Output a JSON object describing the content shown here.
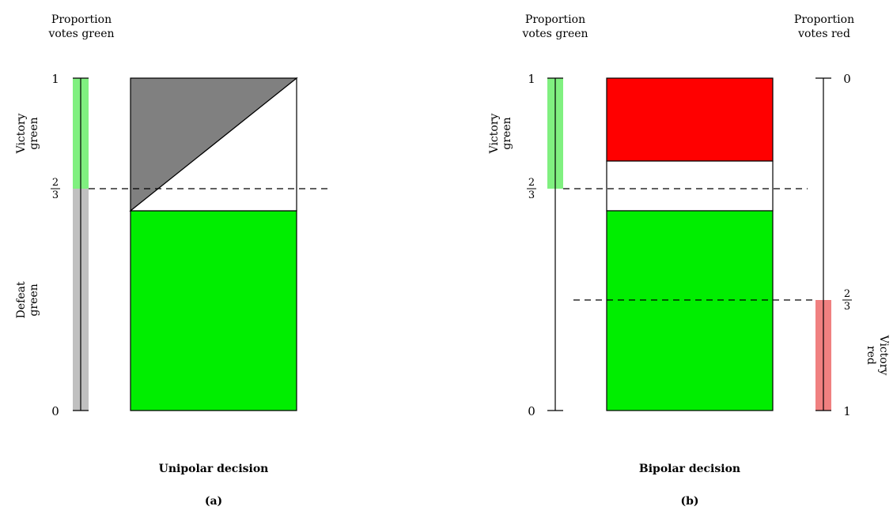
{
  "colors": {
    "green": "#00ee00",
    "light_green": "#80f080",
    "gray_fill": "#808080",
    "light_gray": "#c0c0c0",
    "red": "#ff0000",
    "light_red": "#f08080",
    "white": "#ffffff",
    "stroke": "#000000"
  },
  "panel_a": {
    "axis_title_line1": "Proportion",
    "axis_title_line2": "votes green",
    "tick_top": "1",
    "tick_bottom": "0",
    "threshold_num": "2",
    "threshold_den": "3",
    "victory_line1": "Victory",
    "victory_line2": "green",
    "defeat_line1": "Defeat",
    "defeat_line2": "green",
    "title": "Unipolar decision",
    "caption": "(a)"
  },
  "panel_b": {
    "left_axis_title_line1": "Proportion",
    "left_axis_title_line2": "votes green",
    "right_axis_title_line1": "Proportion",
    "right_axis_title_line2": "votes red",
    "left_tick_top": "1",
    "left_tick_bottom": "0",
    "left_threshold_num": "2",
    "left_threshold_den": "3",
    "right_tick_top": "0",
    "right_tick_bottom": "1",
    "right_threshold_num": "2",
    "right_threshold_den": "3",
    "victory_green_line1": "Victory",
    "victory_green_line2": "green",
    "victory_red_line1": "Victory",
    "victory_red_line2": "red",
    "title": "Bipolar decision",
    "caption": "(b)"
  }
}
